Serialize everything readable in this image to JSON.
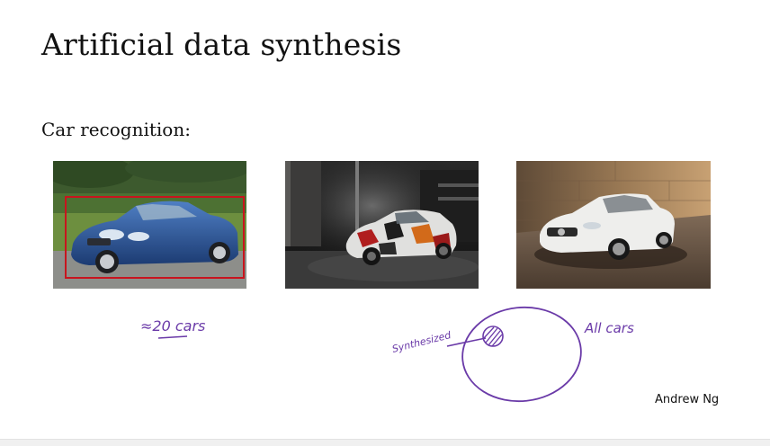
{
  "slide": {
    "title": "Artificial data synthesis",
    "subtitle": "Car recognition:",
    "author": "Andrew Ng"
  },
  "handwriting": {
    "count_note": "≈20 cars",
    "synthesized_label": "Synthesized",
    "all_cars_label": "All cars"
  },
  "colors": {
    "ink": "#6a3aa8",
    "bounding_box": "#c8141e"
  }
}
